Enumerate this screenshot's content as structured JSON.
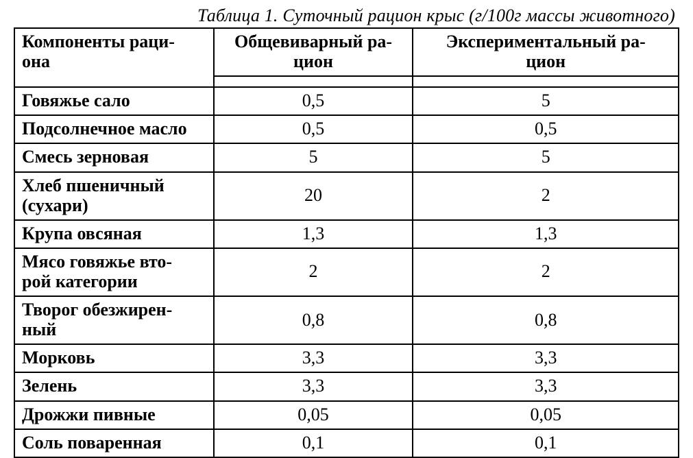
{
  "caption": "Таблица 1. Суточный рацион крыс (г/100г массы животного)",
  "table": {
    "type": "table",
    "border_color": "#000000",
    "background_color": "#ffffff",
    "text_color": "#000000",
    "font_family": "Times New Roman",
    "font_size_pt": 20,
    "header_weight": "bold",
    "label_weight": "bold",
    "value_weight": "normal",
    "column_widths_pct": [
      30,
      30,
      40
    ],
    "columns": [
      "Компоненты раци-\nона",
      "Общевиварный ра-\nцион",
      "Экспериментальный ра-\nцион"
    ],
    "rows": [
      {
        "label": "Говяжье сало",
        "general": "0,5",
        "experimental": "5"
      },
      {
        "label": "Подсолнечное масло",
        "general": "0,5",
        "experimental": "0,5"
      },
      {
        "label": "Смесь зерновая",
        "general": "5",
        "experimental": "5"
      },
      {
        "label": "Хлеб   пшеничный (сухари)",
        "general": "20",
        "experimental": "2"
      },
      {
        "label": "Крупа овсяная",
        "general": "1,3",
        "experimental": "1,3"
      },
      {
        "label": "Мясо говяжье вто-\nрой категории",
        "general": "2",
        "experimental": "2"
      },
      {
        "label": "Творог обезжирен-\nный",
        "general": "0,8",
        "experimental": "0,8"
      },
      {
        "label": "Морковь",
        "general": "3,3",
        "experimental": "3,3"
      },
      {
        "label": "Зелень",
        "general": "3,3",
        "experimental": "3,3"
      },
      {
        "label": "Дрожжи пивные",
        "general": "0,05",
        "experimental": "0,05"
      },
      {
        "label": "Соль поваренная",
        "general": "0,1",
        "experimental": "0,1"
      }
    ]
  }
}
